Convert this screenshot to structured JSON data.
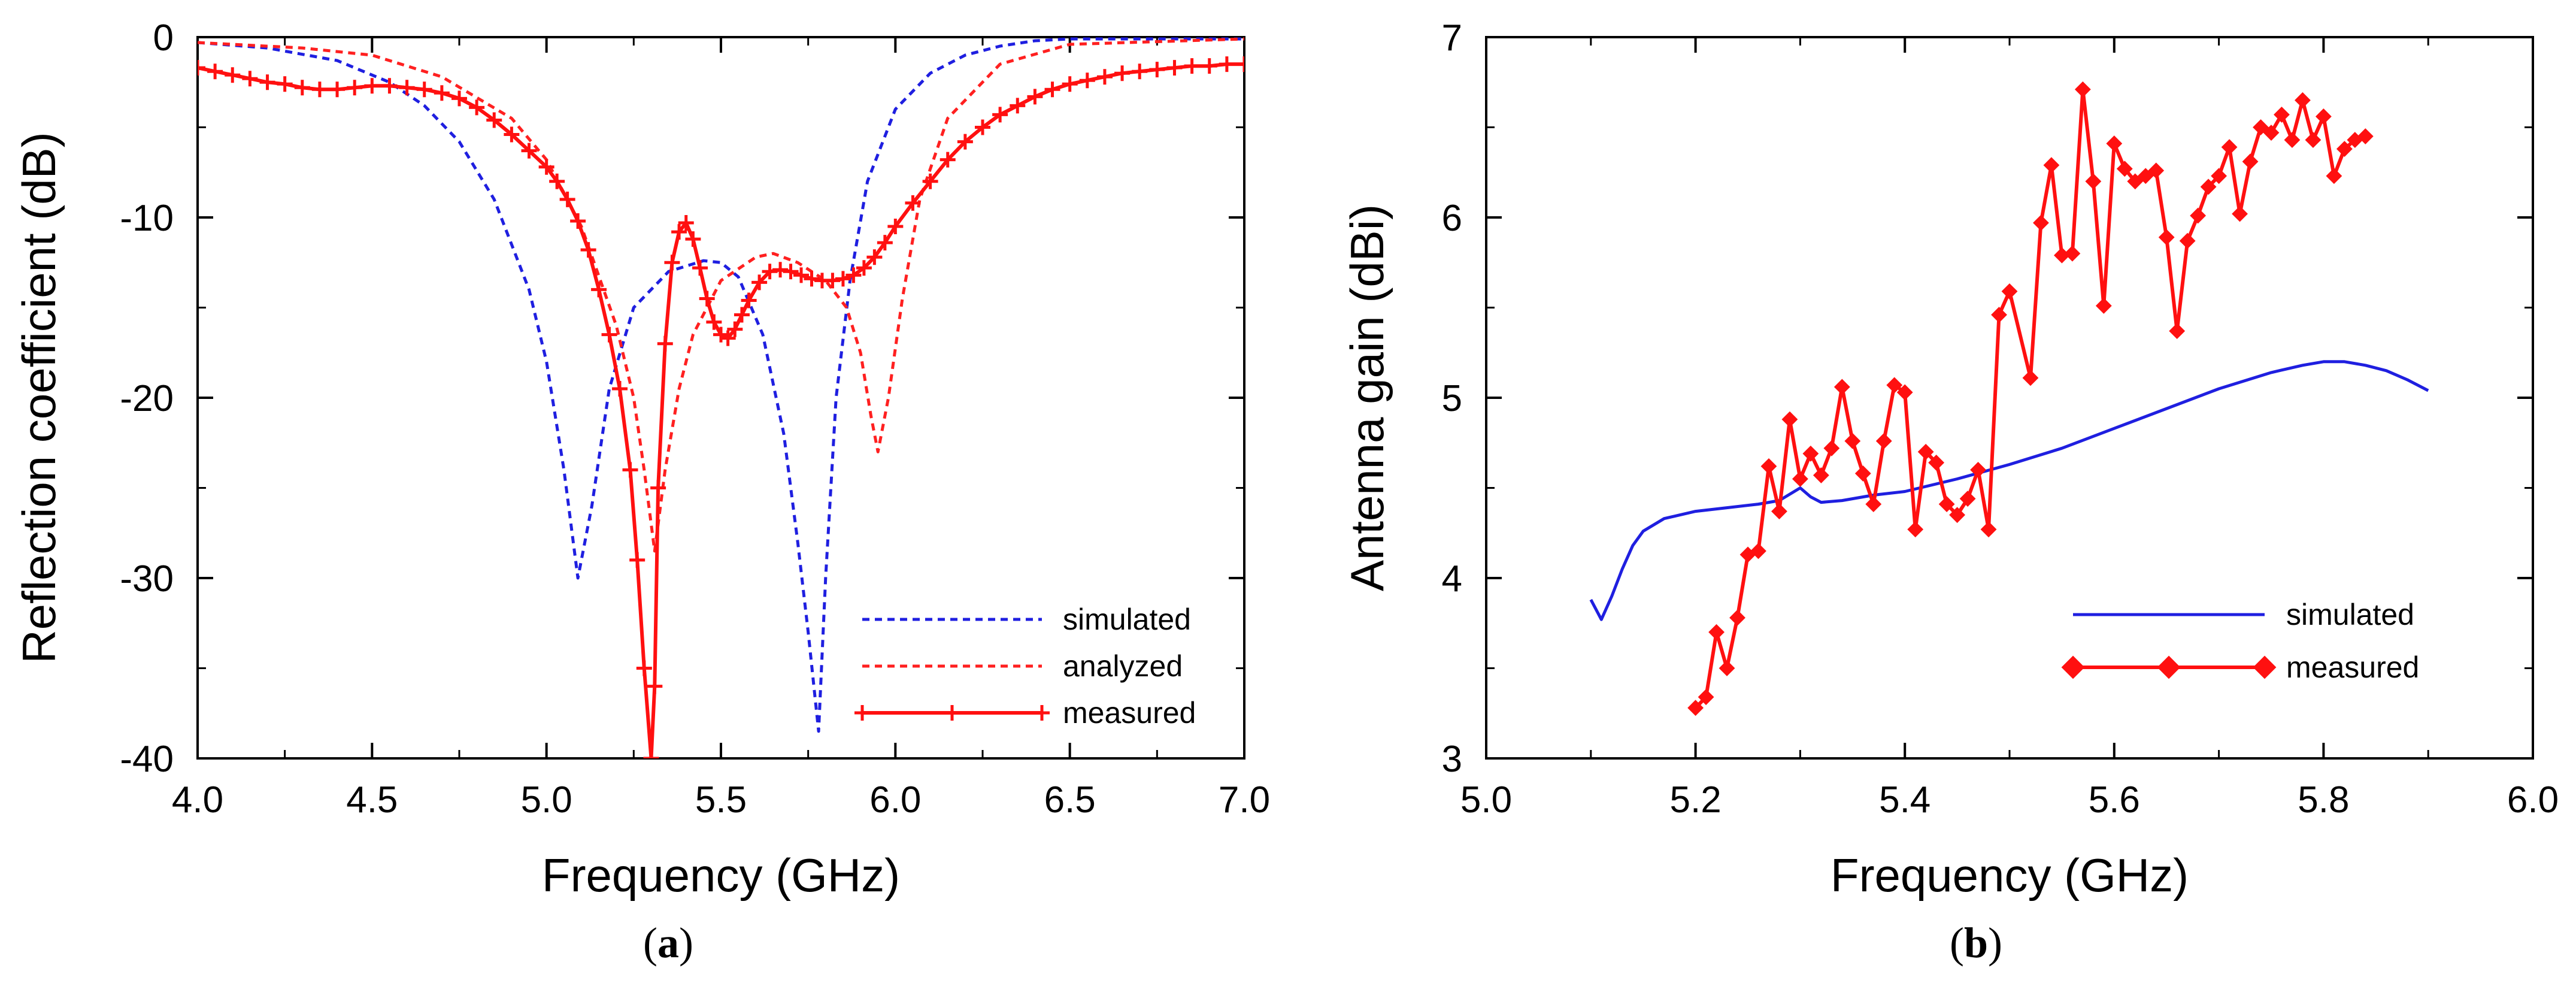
{
  "chart_data": [
    {
      "type": "line",
      "panel_label": {
        "open": "(",
        "letter": "a",
        "close": ")"
      },
      "xlabel": "Frequency (GHz)",
      "ylabel": "Reflection coefficient (dB)",
      "xlim": [
        4.0,
        7.0
      ],
      "ylim": [
        -40,
        0
      ],
      "xticks": [
        4.0,
        4.5,
        5.0,
        5.5,
        6.0,
        6.5,
        7.0
      ],
      "xtick_labels": [
        "4.0",
        "4.5",
        "5.0",
        "5.5",
        "6.0",
        "6.5",
        "7.0"
      ],
      "yticks": [
        0,
        -10,
        -20,
        -30,
        -40
      ],
      "ytick_labels": [
        "0",
        "-10",
        "-20",
        "-30",
        "-40"
      ],
      "grid": false,
      "legend_position": "bottom-right",
      "series": [
        {
          "name": "simulated",
          "color": "#1f1fe0",
          "style": "dashed",
          "x": [
            4.0,
            4.2,
            4.4,
            4.55,
            4.65,
            4.75,
            4.85,
            4.95,
            5.0,
            5.05,
            5.09,
            5.13,
            5.18,
            5.25,
            5.35,
            5.45,
            5.5,
            5.55,
            5.62,
            5.68,
            5.72,
            5.75,
            5.78,
            5.8,
            5.83,
            5.87,
            5.92,
            6.0,
            6.1,
            6.2,
            6.3,
            6.4,
            6.5,
            7.0
          ],
          "y": [
            -0.3,
            -0.6,
            -1.3,
            -2.5,
            -3.8,
            -5.8,
            -9.0,
            -14.0,
            -18.0,
            -24.0,
            -30.0,
            -26.0,
            -19.5,
            -15.0,
            -13.0,
            -12.4,
            -12.5,
            -13.3,
            -16.5,
            -22.0,
            -28.0,
            -33.0,
            -38.5,
            -30.0,
            -20.0,
            -13.5,
            -8.0,
            -4.0,
            -2.0,
            -1.0,
            -0.5,
            -0.2,
            -0.1,
            -0.1
          ]
        },
        {
          "name": "analyzed",
          "color": "#ff2020",
          "style": "dashed",
          "x": [
            4.0,
            4.3,
            4.5,
            4.7,
            4.9,
            5.0,
            5.1,
            5.2,
            5.25,
            5.28,
            5.31,
            5.34,
            5.38,
            5.42,
            5.5,
            5.6,
            5.65,
            5.72,
            5.8,
            5.86,
            5.9,
            5.93,
            5.95,
            5.98,
            6.02,
            6.07,
            6.15,
            6.3,
            6.5,
            7.0
          ],
          "y": [
            -0.3,
            -0.6,
            -1.0,
            -2.2,
            -4.5,
            -6.8,
            -10.5,
            -16.0,
            -20.0,
            -24.0,
            -28.5,
            -24.0,
            -19.5,
            -16.5,
            -13.5,
            -12.2,
            -12.0,
            -12.5,
            -13.5,
            -15.0,
            -17.5,
            -21.0,
            -23.0,
            -20.0,
            -14.5,
            -9.0,
            -4.5,
            -1.5,
            -0.4,
            -0.1
          ]
        },
        {
          "name": "measured",
          "color": "#ff1010",
          "style": "solid-plus",
          "x": [
            4.0,
            4.05,
            4.1,
            4.15,
            4.2,
            4.25,
            4.3,
            4.35,
            4.4,
            4.45,
            4.5,
            4.55,
            4.6,
            4.65,
            4.7,
            4.75,
            4.8,
            4.85,
            4.9,
            4.95,
            5.0,
            5.03,
            5.06,
            5.09,
            5.12,
            5.15,
            5.18,
            5.21,
            5.24,
            5.26,
            5.28,
            5.3,
            5.31,
            5.32,
            5.34,
            5.36,
            5.38,
            5.4,
            5.42,
            5.44,
            5.46,
            5.48,
            5.5,
            5.52,
            5.54,
            5.56,
            5.58,
            5.61,
            5.64,
            5.67,
            5.7,
            5.73,
            5.76,
            5.79,
            5.82,
            5.85,
            5.88,
            5.91,
            5.94,
            5.97,
            6.0,
            6.05,
            6.1,
            6.15,
            6.2,
            6.25,
            6.3,
            6.35,
            6.4,
            6.45,
            6.5,
            6.55,
            6.6,
            6.65,
            6.7,
            6.75,
            6.8,
            6.85,
            6.9,
            6.95,
            7.0
          ],
          "y": [
            -1.7,
            -1.9,
            -2.1,
            -2.3,
            -2.5,
            -2.6,
            -2.8,
            -2.9,
            -2.9,
            -2.8,
            -2.7,
            -2.7,
            -2.8,
            -2.9,
            -3.1,
            -3.4,
            -3.9,
            -4.6,
            -5.4,
            -6.3,
            -7.2,
            -8.0,
            -9.0,
            -10.2,
            -11.8,
            -14.0,
            -16.5,
            -19.5,
            -24.0,
            -29.0,
            -35.0,
            -40.0,
            -36.0,
            -25.0,
            -17.0,
            -12.5,
            -10.8,
            -10.3,
            -11.2,
            -12.8,
            -14.5,
            -15.8,
            -16.5,
            -16.7,
            -16.2,
            -15.4,
            -14.6,
            -13.6,
            -13.0,
            -12.9,
            -13.0,
            -13.2,
            -13.4,
            -13.5,
            -13.5,
            -13.4,
            -13.2,
            -12.8,
            -12.2,
            -11.4,
            -10.5,
            -9.2,
            -8.0,
            -6.8,
            -5.8,
            -5.0,
            -4.3,
            -3.8,
            -3.3,
            -2.9,
            -2.6,
            -2.4,
            -2.2,
            -2.0,
            -1.9,
            -1.8,
            -1.7,
            -1.6,
            -1.6,
            -1.5,
            -1.5
          ]
        }
      ]
    },
    {
      "type": "line",
      "panel_label": {
        "open": "(",
        "letter": "b",
        "close": ")"
      },
      "xlabel": "Frequency (GHz)",
      "ylabel": "Antenna gain (dBi)",
      "xlim": [
        5.0,
        6.0
      ],
      "ylim": [
        3,
        7
      ],
      "xticks": [
        5.0,
        5.2,
        5.4,
        5.6,
        5.8,
        6.0
      ],
      "xtick_labels": [
        "5.0",
        "5.2",
        "5.4",
        "5.6",
        "5.8",
        "6.0"
      ],
      "yticks": [
        3,
        4,
        5,
        6,
        7
      ],
      "ytick_labels": [
        "3",
        "4",
        "5",
        "6",
        "7"
      ],
      "grid": false,
      "legend_position": "bottom-right",
      "series": [
        {
          "name": "simulated",
          "color": "#1f1fe0",
          "style": "solid",
          "x": [
            5.1,
            5.11,
            5.12,
            5.13,
            5.14,
            5.15,
            5.17,
            5.2,
            5.23,
            5.26,
            5.28,
            5.3,
            5.31,
            5.32,
            5.34,
            5.37,
            5.4,
            5.45,
            5.5,
            5.55,
            5.6,
            5.65,
            5.7,
            5.75,
            5.78,
            5.8,
            5.82,
            5.84,
            5.86,
            5.88,
            5.9
          ],
          "y": [
            3.88,
            3.77,
            3.9,
            4.05,
            4.18,
            4.26,
            4.33,
            4.37,
            4.39,
            4.41,
            4.43,
            4.5,
            4.45,
            4.42,
            4.43,
            4.46,
            4.48,
            4.55,
            4.63,
            4.72,
            4.83,
            4.94,
            5.05,
            5.14,
            5.18,
            5.2,
            5.2,
            5.18,
            5.15,
            5.1,
            5.04
          ]
        },
        {
          "name": "measured",
          "color": "#ff1010",
          "style": "solid-diamond",
          "x": [
            5.2,
            5.21,
            5.22,
            5.23,
            5.24,
            5.25,
            5.26,
            5.27,
            5.28,
            5.29,
            5.3,
            5.31,
            5.32,
            5.33,
            5.34,
            5.35,
            5.36,
            5.37,
            5.38,
            5.39,
            5.4,
            5.41,
            5.42,
            5.43,
            5.44,
            5.45,
            5.46,
            5.47,
            5.48,
            5.49,
            5.5,
            5.52,
            5.53,
            5.54,
            5.55,
            5.56,
            5.57,
            5.58,
            5.59,
            5.6,
            5.61,
            5.62,
            5.63,
            5.64,
            5.65,
            5.66,
            5.67,
            5.68,
            5.69,
            5.7,
            5.71,
            5.72,
            5.73,
            5.74,
            5.75,
            5.76,
            5.77,
            5.78,
            5.79,
            5.8,
            5.81,
            5.82,
            5.83,
            5.84
          ],
          "y": [
            3.28,
            3.34,
            3.7,
            3.5,
            3.78,
            4.13,
            4.15,
            4.62,
            4.37,
            4.88,
            4.55,
            4.69,
            4.57,
            4.72,
            5.06,
            4.76,
            4.58,
            4.41,
            4.76,
            5.07,
            5.03,
            4.27,
            4.7,
            4.64,
            4.41,
            4.35,
            4.44,
            4.6,
            4.27,
            5.46,
            5.59,
            5.11,
            5.97,
            6.29,
            5.79,
            5.8,
            6.71,
            6.2,
            5.51,
            6.41,
            6.27,
            6.2,
            6.23,
            6.26,
            5.89,
            5.37,
            5.87,
            6.01,
            6.17,
            6.23,
            6.39,
            6.02,
            6.31,
            6.5,
            6.47,
            6.57,
            6.43,
            6.65,
            6.43,
            6.56,
            6.23,
            6.38,
            6.43,
            6.45
          ]
        }
      ]
    }
  ]
}
